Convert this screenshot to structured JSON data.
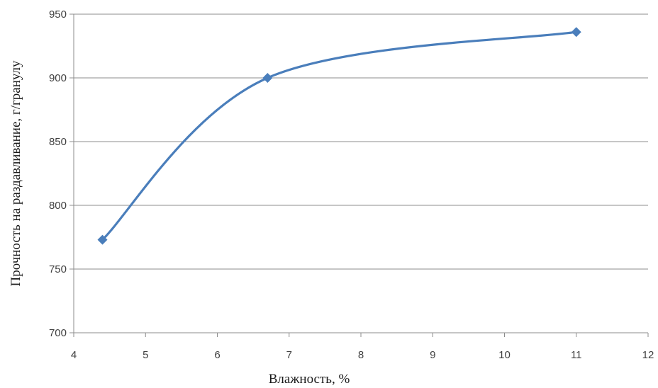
{
  "chart_data": {
    "type": "line",
    "title": "",
    "xlabel": "Влажность, %",
    "ylabel": "Прочность на раздавливание, г/гранулу",
    "xlim": [
      4,
      12
    ],
    "ylim": [
      700,
      950
    ],
    "xticks": [
      4,
      5,
      6,
      7,
      8,
      9,
      10,
      11,
      12
    ],
    "yticks": [
      700,
      750,
      800,
      850,
      900,
      950
    ],
    "grid": "horizontal",
    "legend": "none",
    "smooth": true,
    "marker": "diamond",
    "series": [
      {
        "color": "#4a7ebb",
        "x": [
          4.4,
          6.7,
          11
        ],
        "y": [
          773,
          900,
          936
        ]
      }
    ]
  }
}
